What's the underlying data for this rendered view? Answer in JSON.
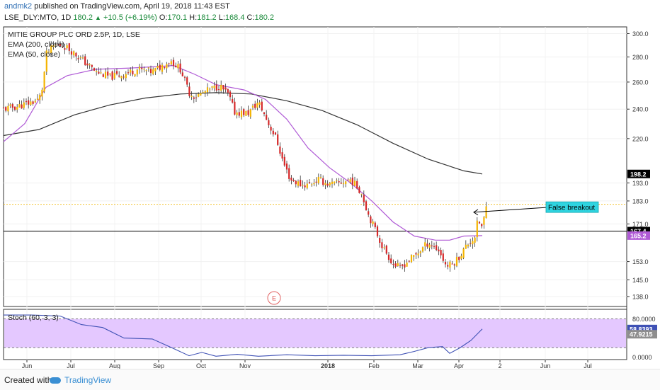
{
  "header": {
    "author": "andmk2",
    "published": "published on TradingView.com, April 19, 2018 11:43 EST",
    "symbol": "LSE_DLY:MTO, 1D",
    "last": "180.2",
    "change": "+10.5 (+6.19%)",
    "o_label": "O:",
    "o_value": "170.1",
    "h_label": "H:",
    "h_value": "181.2",
    "l_label": "L:",
    "l_value": "168.4",
    "c_label": "C:",
    "c_value": "180.2"
  },
  "legend": {
    "title": "MITIE GROUP PLC ORD 2.5P, 1D, LSE",
    "ema200": "EMA (200, close)",
    "ema50": "EMA (50, close)",
    "stoch": "Stoch (60, 3, 3)"
  },
  "annotations": {
    "false_breakout": "False breakout",
    "earnings_marker": "E"
  },
  "footer": {
    "created_with": "Created with",
    "brand": "TradingView"
  },
  "colors": {
    "ema50": "#b05bd6",
    "ema200": "#333333",
    "up_candle": "#f4b400",
    "down_candle": "#d62728",
    "resistance": "#f2c230",
    "support": "#000000",
    "annotation_bg": "#2fd4e0",
    "stoch_band": "#e4c8ff",
    "stoch_line": "#3f51b5"
  },
  "chart_data": [
    {
      "type": "line",
      "title": "MITIE GROUP PLC ORD 2.5P, 1D, LSE",
      "x": [
        "Jun",
        "Jul",
        "Aug",
        "Sep",
        "Oct",
        "Nov",
        "2018",
        "Feb",
        "Mar",
        "Apr",
        "2",
        "Jun",
        "Jul"
      ],
      "ylim": [
        134,
        306
      ],
      "scale": "log",
      "yticks": [
        138.0,
        145.0,
        153.0,
        171.0,
        183.0,
        193.0,
        220.0,
        240.0,
        260.0,
        280.0,
        300.0
      ],
      "price_labels": [
        {
          "value": 198.2,
          "text": "198.2",
          "kind": "ema200"
        },
        {
          "value": 167.4,
          "text": "167.4",
          "kind": "support"
        },
        {
          "value": 165.2,
          "text": "165.2",
          "kind": "ema50"
        }
      ],
      "horizontal_lines": [
        {
          "value": 181.2,
          "style": "dotted",
          "kind": "resistance"
        },
        {
          "value": 167.4,
          "style": "solid",
          "kind": "support"
        }
      ],
      "series": [
        {
          "name": "EMA (200, close)",
          "points": [
            [
              0,
              222
            ],
            [
              50,
              226
            ],
            [
              100,
              236
            ],
            [
              150,
              243
            ],
            [
              200,
              248
            ],
            [
              250,
              251
            ],
            [
              300,
              252
            ],
            [
              350,
              251
            ],
            [
              400,
              246
            ],
            [
              450,
              239
            ],
            [
              500,
              229
            ],
            [
              550,
              217
            ],
            [
              600,
              207
            ],
            [
              650,
              200
            ],
            [
              676,
              198.2
            ]
          ]
        },
        {
          "name": "EMA (50, close)",
          "points": [
            [
              0,
              218
            ],
            [
              30,
              230
            ],
            [
              60,
              256
            ],
            [
              90,
              265
            ],
            [
              130,
              270
            ],
            [
              180,
              271
            ],
            [
              240,
              273
            ],
            [
              270,
              266
            ],
            [
              300,
              258
            ],
            [
              340,
              254
            ],
            [
              370,
              247
            ],
            [
              400,
              233
            ],
            [
              430,
              214
            ],
            [
              460,
              202
            ],
            [
              490,
              193
            ],
            [
              520,
              183
            ],
            [
              550,
              172
            ],
            [
              580,
              165
            ],
            [
              610,
              163
            ],
            [
              630,
              163
            ],
            [
              650,
              165
            ],
            [
              676,
              165.2
            ]
          ]
        },
        {
          "name": "MTO price",
          "points": [
            [
              0,
              240
            ],
            [
              20,
              242
            ],
            [
              40,
              245
            ],
            [
              50,
              247
            ],
            [
              56,
              258
            ],
            [
              60,
              282
            ],
            [
              72,
              290
            ],
            [
              84,
              290
            ],
            [
              96,
              285
            ],
            [
              110,
              278
            ],
            [
              130,
              268
            ],
            [
              150,
              264
            ],
            [
              170,
              266
            ],
            [
              190,
              270
            ],
            [
              210,
              268
            ],
            [
              236,
              277
            ],
            [
              250,
              270
            ],
            [
              262,
              252
            ],
            [
              270,
              249
            ],
            [
              290,
              254
            ],
            [
              305,
              257
            ],
            [
              318,
              250
            ],
            [
              326,
              238
            ],
            [
              345,
              237
            ],
            [
              360,
              245
            ],
            [
              375,
              229
            ],
            [
              385,
              220
            ],
            [
              395,
              205
            ],
            [
              405,
              195
            ],
            [
              420,
              192
            ],
            [
              430,
              192
            ],
            [
              445,
              195
            ],
            [
              460,
              192
            ],
            [
              475,
              193
            ],
            [
              490,
              195
            ],
            [
              505,
              188
            ],
            [
              515,
              176
            ],
            [
              525,
              168
            ],
            [
              535,
              160
            ],
            [
              550,
              152
            ],
            [
              560,
              150
            ],
            [
              570,
              153
            ],
            [
              585,
              157
            ],
            [
              600,
              162
            ],
            [
              615,
              158
            ],
            [
              625,
              151
            ],
            [
              635,
              152
            ],
            [
              645,
              156
            ],
            [
              655,
              161
            ],
            [
              665,
              164
            ],
            [
              670,
              173
            ],
            [
              676,
              169
            ],
            [
              682,
              180.2
            ]
          ]
        }
      ],
      "annotations": [
        {
          "text": "False breakout",
          "x": 770,
          "value": 179.5
        },
        {
          "text": "E",
          "x": 385,
          "value": 136
        }
      ]
    },
    {
      "type": "line",
      "title": "Stoch (60, 3, 3)",
      "ylim": [
        -5,
        100
      ],
      "yticks": [
        0.0,
        80.0
      ],
      "band": [
        20,
        80
      ],
      "price_labels": [
        {
          "value": 58.8393,
          "text": "58.8393"
        },
        {
          "value": 47.9215,
          "text": "47.9215"
        }
      ],
      "series": [
        {
          "name": "%K",
          "points": [
            [
              0,
              88
            ],
            [
              40,
              88
            ],
            [
              80,
              86
            ],
            [
              110,
              68
            ],
            [
              140,
              62
            ],
            [
              170,
              40
            ],
            [
              210,
              38
            ],
            [
              240,
              18
            ],
            [
              262,
              3
            ],
            [
              280,
              10
            ],
            [
              300,
              2
            ],
            [
              330,
              6
            ],
            [
              360,
              2
            ],
            [
              400,
              5
            ],
            [
              440,
              3
            ],
            [
              480,
              4
            ],
            [
              520,
              3
            ],
            [
              560,
              5
            ],
            [
              580,
              12
            ],
            [
              600,
              20
            ],
            [
              620,
              22
            ],
            [
              630,
              8
            ],
            [
              645,
              20
            ],
            [
              660,
              35
            ],
            [
              676,
              58.8393
            ]
          ]
        }
      ]
    }
  ]
}
